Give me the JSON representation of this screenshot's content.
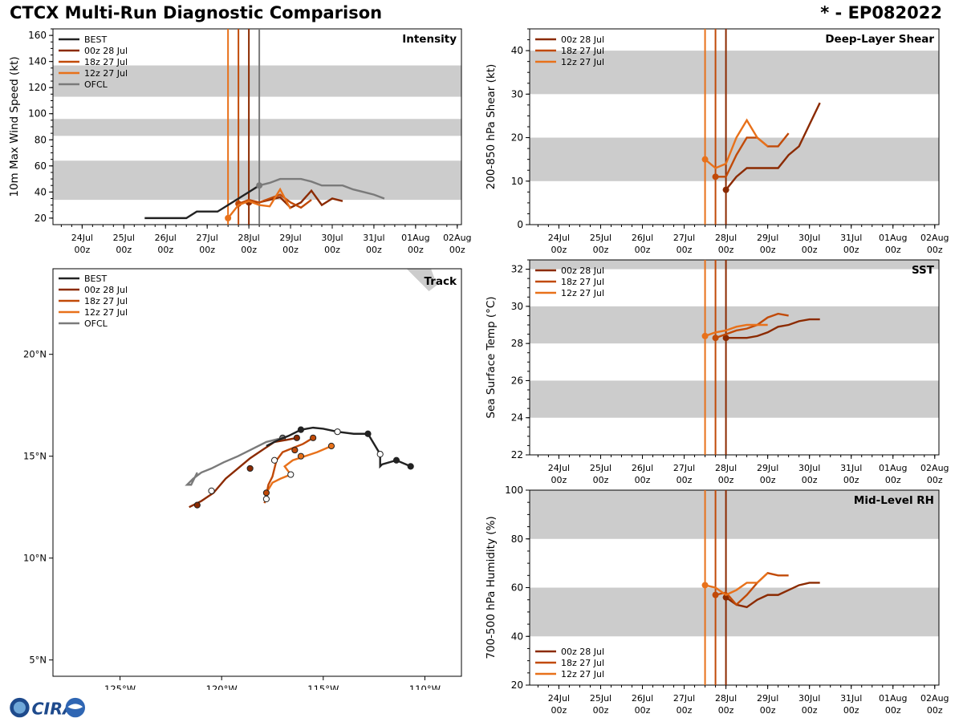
{
  "header": {
    "title": "CTCX Multi-Run Diagnostic Comparison",
    "storm_id": "* - EP082022"
  },
  "colors": {
    "BEST": "#222222",
    "00z 28 Jul": "#8b2a00",
    "18z 27 Jul": "#c14a08",
    "12z 27 Jul": "#e8711a",
    "OFCL": "#7a7a7a",
    "band": "#cccccc"
  },
  "logo": {
    "text": "CIRA"
  },
  "time_ticks": [
    "24Jul|00z",
    "25Jul|00z",
    "26Jul|00z",
    "27Jul|00z",
    "28Jul|00z",
    "29Jul|00z",
    "30Jul|00z",
    "31Jul|00z",
    "01Aug|00z",
    "02Aug|00z"
  ],
  "chart_data": [
    {
      "type": "line",
      "panel": "intensity",
      "title": "Intensity",
      "ylabel": "10m Max Wind Speed (kt)",
      "x_unit": "days since 24 Jul 00z",
      "xlim": [
        -0.7,
        9.1
      ],
      "ylim": [
        15,
        165
      ],
      "yticks": [
        20,
        40,
        60,
        80,
        100,
        120,
        140,
        160
      ],
      "bands": [
        [
          34,
          64
        ],
        [
          83,
          96
        ],
        [
          113,
          137
        ]
      ],
      "legend": [
        "BEST",
        "00z 28 Jul",
        "18z 27 Jul",
        "12z 27 Jul",
        "OFCL"
      ],
      "init_lines": [
        {
          "name": "12z 27 Jul",
          "x": 3.5
        },
        {
          "name": "18z 27 Jul",
          "x": 3.75
        },
        {
          "name": "00z 28 Jul",
          "x": 4.0
        },
        {
          "name": "OFCL",
          "x": 4.25
        }
      ],
      "series": [
        {
          "name": "BEST",
          "x": [
            1.5,
            1.75,
            2.0,
            2.25,
            2.5,
            2.75,
            3.0,
            3.25,
            3.5,
            3.75,
            4.0,
            4.25
          ],
          "y": [
            20,
            20,
            20,
            20,
            20,
            25,
            25,
            25,
            30,
            35,
            40,
            45
          ]
        },
        {
          "name": "OFCL",
          "x": [
            4.25,
            4.5,
            4.75,
            5.0,
            5.25,
            5.5,
            5.75,
            6.0,
            6.25,
            6.5,
            6.75,
            7.0,
            7.25
          ],
          "y": [
            45,
            47,
            50,
            50,
            50,
            48,
            45,
            45,
            45,
            42,
            40,
            38,
            35
          ]
        },
        {
          "name": "00z 28 Jul",
          "x": [
            4.0,
            4.25,
            4.5,
            4.75,
            5.0,
            5.25,
            5.5,
            5.75,
            6.0,
            6.25
          ],
          "y": [
            32,
            32,
            34,
            36,
            28,
            32,
            41,
            30,
            35,
            33
          ]
        },
        {
          "name": "18z 27 Jul",
          "x": [
            3.75,
            4.0,
            4.25,
            4.5,
            4.75,
            5.0,
            5.25,
            5.5
          ],
          "y": [
            31,
            34,
            32,
            35,
            38,
            32,
            28,
            34
          ]
        },
        {
          "name": "12z 27 Jul",
          "x": [
            3.5,
            3.75,
            4.0,
            4.25,
            4.5,
            4.75,
            5.0
          ],
          "y": [
            20,
            30,
            33,
            30,
            29,
            42,
            27
          ]
        }
      ]
    },
    {
      "type": "line",
      "panel": "shear",
      "title": "Deep-Layer Shear",
      "ylabel": "200-850 hPa Shear (kt)",
      "x_unit": "days since 24 Jul 00z",
      "xlim": [
        -0.7,
        9.1
      ],
      "ylim": [
        0,
        45
      ],
      "yticks": [
        0,
        10,
        20,
        30,
        40
      ],
      "bands": [
        [
          10,
          20
        ],
        [
          30,
          40
        ]
      ],
      "legend": [
        "00z 28 Jul",
        "18z 27 Jul",
        "12z 27 Jul"
      ],
      "init_lines": [
        {
          "name": "12z 27 Jul",
          "x": 3.5
        },
        {
          "name": "18z 27 Jul",
          "x": 3.75
        },
        {
          "name": "00z 28 Jul",
          "x": 4.0
        }
      ],
      "series": [
        {
          "name": "00z 28 Jul",
          "x": [
            4.0,
            4.25,
            4.5,
            4.75,
            5.0,
            5.25,
            5.5,
            5.75,
            6.0,
            6.25
          ],
          "y": [
            8,
            11,
            13,
            13,
            13,
            13,
            16,
            18,
            23,
            28
          ]
        },
        {
          "name": "18z 27 Jul",
          "x": [
            3.75,
            4.0,
            4.25,
            4.5,
            4.75,
            5.0,
            5.25,
            5.5
          ],
          "y": [
            11,
            11,
            16,
            20,
            20,
            18,
            18,
            21
          ]
        },
        {
          "name": "12z 27 Jul",
          "x": [
            3.5,
            3.75,
            4.0,
            4.25,
            4.5,
            4.75,
            5.0
          ],
          "y": [
            15,
            13,
            14,
            20,
            24,
            20,
            18
          ]
        }
      ]
    },
    {
      "type": "line",
      "panel": "sst",
      "title": "SST",
      "ylabel": "Sea Surface Temp (°C)",
      "x_unit": "days since 24 Jul 00z",
      "xlim": [
        -0.7,
        9.1
      ],
      "ylim": [
        22,
        32.5
      ],
      "yticks": [
        22,
        24,
        26,
        28,
        30,
        32
      ],
      "bands": [
        [
          24,
          26
        ],
        [
          28,
          30
        ],
        [
          32,
          32.5
        ]
      ],
      "legend": [
        "00z 28 Jul",
        "18z 27 Jul",
        "12z 27 Jul"
      ],
      "init_lines": [
        {
          "name": "12z 27 Jul",
          "x": 3.5
        },
        {
          "name": "18z 27 Jul",
          "x": 3.75
        },
        {
          "name": "00z 28 Jul",
          "x": 4.0
        }
      ],
      "series": [
        {
          "name": "00z 28 Jul",
          "x": [
            4.0,
            4.25,
            4.5,
            4.75,
            5.0,
            5.25,
            5.5,
            5.75,
            6.0,
            6.25
          ],
          "y": [
            28.3,
            28.3,
            28.3,
            28.4,
            28.6,
            28.9,
            29.0,
            29.2,
            29.3,
            29.3
          ]
        },
        {
          "name": "18z 27 Jul",
          "x": [
            3.75,
            4.0,
            4.25,
            4.5,
            4.75,
            5.0,
            5.25,
            5.5
          ],
          "y": [
            28.3,
            28.5,
            28.7,
            28.8,
            29.0,
            29.4,
            29.6,
            29.5
          ]
        },
        {
          "name": "12z 27 Jul",
          "x": [
            3.5,
            3.75,
            4.0,
            4.25,
            4.5,
            4.75,
            5.0
          ],
          "y": [
            28.4,
            28.6,
            28.7,
            28.9,
            29.0,
            29.0,
            29.0
          ]
        }
      ]
    },
    {
      "type": "line",
      "panel": "rh",
      "title": "Mid-Level RH",
      "ylabel": "700-500 hPa Humidity (%)",
      "x_unit": "days since 24 Jul 00z",
      "xlim": [
        -0.7,
        9.1
      ],
      "ylim": [
        20,
        100
      ],
      "yticks": [
        20,
        40,
        60,
        80,
        100
      ],
      "bands": [
        [
          40,
          60
        ],
        [
          80,
          100
        ]
      ],
      "legend": [
        "00z 28 Jul",
        "18z 27 Jul",
        "12z 27 Jul"
      ],
      "init_lines": [
        {
          "name": "12z 27 Jul",
          "x": 3.5
        },
        {
          "name": "18z 27 Jul",
          "x": 3.75
        },
        {
          "name": "00z 28 Jul",
          "x": 4.0
        }
      ],
      "series": [
        {
          "name": "00z 28 Jul",
          "x": [
            4.0,
            4.25,
            4.5,
            4.75,
            5.0,
            5.25,
            5.5,
            5.75,
            6.0,
            6.25
          ],
          "y": [
            56,
            53,
            52,
            55,
            57,
            57,
            59,
            61,
            62,
            62
          ]
        },
        {
          "name": "18z 27 Jul",
          "x": [
            3.75,
            4.0,
            4.25,
            4.5,
            4.75,
            5.0,
            5.25,
            5.5
          ],
          "y": [
            57,
            58,
            53,
            57,
            62,
            66,
            65,
            65
          ]
        },
        {
          "name": "12z 27 Jul",
          "x": [
            3.5,
            3.75,
            4.0,
            4.25,
            4.5,
            4.75,
            5.0
          ],
          "y": [
            61,
            60,
            57,
            59,
            62,
            62,
            66
          ]
        }
      ]
    },
    {
      "type": "scatter",
      "panel": "track",
      "title": "Track",
      "xlim": [
        -128.3,
        -108.2
      ],
      "ylim": [
        4.2,
        24.2
      ],
      "xticks": [
        {
          "v": -125,
          "l": "125°W"
        },
        {
          "v": -120,
          "l": "120°W"
        },
        {
          "v": -115,
          "l": "115°W"
        },
        {
          "v": -110,
          "l": "110°W"
        }
      ],
      "yticks": [
        {
          "v": 5,
          "l": "5°N"
        },
        {
          "v": 10,
          "l": "10°N"
        },
        {
          "v": 15,
          "l": "15°N"
        },
        {
          "v": 20,
          "l": "20°N"
        }
      ],
      "legend": [
        "BEST",
        "00z 28 Jul",
        "18z 27 Jul",
        "12z 27 Jul",
        "OFCL"
      ],
      "series": [
        {
          "name": "BEST",
          "lon": [
            -110.7,
            -111.4,
            -112.1,
            -112.2,
            -112.2,
            -112.8,
            -113.5,
            -114.3,
            -115.0,
            -115.5,
            -116.1,
            -116.7,
            -117.2,
            -117.8
          ],
          "lat": [
            14.5,
            14.8,
            14.6,
            14.5,
            15.1,
            16.1,
            16.1,
            16.2,
            16.35,
            16.4,
            16.3,
            16.0,
            15.8,
            15.5
          ],
          "markers": [
            {
              "lon": -110.7,
              "lat": 14.5,
              "f": 1
            },
            {
              "lon": -111.4,
              "lat": 14.8,
              "f": 1
            },
            {
              "lon": -112.2,
              "lat": 15.1,
              "f": 0
            },
            {
              "lon": -112.8,
              "lat": 16.1,
              "f": 1
            },
            {
              "lon": -114.3,
              "lat": 16.2,
              "f": 0
            },
            {
              "lon": -116.1,
              "lat": 16.3,
              "f": 1
            }
          ]
        },
        {
          "name": "00z 28 Jul",
          "lon": [
            -116.3,
            -116.8,
            -117.4,
            -118.0,
            -118.6,
            -119.2,
            -119.8,
            -120.4,
            -121.0,
            -121.6
          ],
          "lat": [
            15.9,
            15.8,
            15.7,
            15.3,
            14.9,
            14.4,
            13.9,
            13.2,
            12.8,
            12.5
          ],
          "markers": [
            {
              "lon": -116.3,
              "lat": 15.9,
              "f": 1
            },
            {
              "lon": -118.6,
              "lat": 14.4,
              "f": 1
            },
            {
              "lon": -121.2,
              "lat": 12.6,
              "f": 1
            },
            {
              "lon": -120.5,
              "lat": 13.3,
              "f": 0
            }
          ]
        },
        {
          "name": "18z 27 Jul",
          "lon": [
            -115.5,
            -116.0,
            -116.5,
            -117.0,
            -117.3,
            -117.5,
            -117.7,
            -117.8,
            -117.8,
            -117.9
          ],
          "lat": [
            15.9,
            15.6,
            15.4,
            15.2,
            14.8,
            14.0,
            13.6,
            13.1,
            12.9,
            12.7
          ],
          "markers": [
            {
              "lon": -115.5,
              "lat": 15.9,
              "f": 1
            },
            {
              "lon": -116.4,
              "lat": 15.3,
              "f": 1
            },
            {
              "lon": -117.4,
              "lat": 14.8,
              "f": 0
            },
            {
              "lon": -117.8,
              "lat": 13.2,
              "f": 1
            },
            {
              "lon": -117.8,
              "lat": 12.9,
              "f": 0
            }
          ]
        },
        {
          "name": "12z 27 Jul",
          "lon": [
            -114.6,
            -115.3,
            -115.9,
            -116.5,
            -116.9,
            -116.6,
            -117.1,
            -117.5,
            -117.8
          ],
          "lat": [
            15.5,
            15.2,
            15.0,
            14.8,
            14.5,
            14.1,
            13.9,
            13.7,
            13.2
          ],
          "markers": [
            {
              "lon": -114.6,
              "lat": 15.5,
              "f": 1
            },
            {
              "lon": -116.1,
              "lat": 15.0,
              "f": 1
            },
            {
              "lon": -116.6,
              "lat": 14.1,
              "f": 0
            }
          ]
        },
        {
          "name": "OFCL",
          "lon": [
            -117.0,
            -117.8,
            -118.6,
            -119.2,
            -119.9,
            -120.5,
            -121.0,
            -121.4,
            -121.7,
            -121.5,
            -121.2
          ],
          "lat": [
            15.9,
            15.7,
            15.3,
            15.0,
            14.7,
            14.4,
            14.2,
            13.9,
            13.6,
            13.6,
            14.2
          ],
          "markers": [
            {
              "lon": -117.0,
              "lat": 15.9,
              "f": 1
            }
          ]
        }
      ]
    }
  ]
}
